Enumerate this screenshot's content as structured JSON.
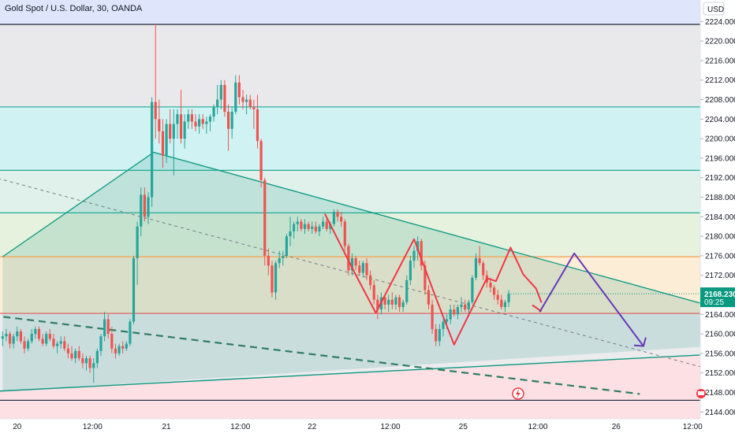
{
  "header": {
    "title": "Gold Spot / U.S. Dollar, 30, OANDA"
  },
  "axis": {
    "currency": "USD"
  },
  "badge": {
    "price": "2168.230",
    "countdown": "09:25"
  },
  "colors": {
    "up": "#26a69a",
    "down": "#ef5350",
    "bull_line": "#f23645",
    "projection": "#673ab7",
    "fib_lines": "#089981",
    "badge": "#089981"
  },
  "chart_data": {
    "type": "candlestick",
    "title": "Gold Spot / U.S. Dollar, 30, OANDA",
    "y_unit": "USD",
    "ylim": [
      2142.6,
      2228.4
    ],
    "y_ticks": [
      "2144.000",
      "2148.000",
      "2152.000",
      "2156.000",
      "2160.000",
      "2164.000",
      "2168.000",
      "2172.000",
      "2176.000",
      "2180.000",
      "2184.000",
      "2188.000",
      "2192.000",
      "2196.000",
      "2200.000",
      "2204.000",
      "2208.000",
      "2212.000",
      "2216.000",
      "2220.000",
      "2224.000"
    ],
    "x_ticks": [
      "20",
      "12:00",
      "21",
      "12:00",
      "22",
      "12:00",
      "25",
      "12:00",
      "26",
      "12:00"
    ],
    "last_price": 2168.23,
    "horizontal_levels": [
      {
        "price": 2223.4,
        "color": "#1e293b"
      },
      {
        "price": 2206.5,
        "color": "#22ab94"
      },
      {
        "price": 2193.5,
        "color": "#22ab94"
      },
      {
        "price": 2184.8,
        "color": "#22ab94"
      },
      {
        "price": 2175.8,
        "color": "#f6a04d"
      },
      {
        "price": 2164.2,
        "color": "#e05a5a"
      },
      {
        "price": 2146.4,
        "color": "#1e293b"
      }
    ],
    "zones": [
      {
        "from": 2223.4,
        "to": 2228.4,
        "color": "#dfe6fb"
      },
      {
        "from": 2206.5,
        "to": 2223.4,
        "color": "#e9e9ec"
      },
      {
        "from": 2193.5,
        "to": 2206.5,
        "color": "#d1f2f3"
      },
      {
        "from": 2184.8,
        "to": 2193.5,
        "color": "#dff1ea"
      },
      {
        "from": 2175.8,
        "to": 2184.8,
        "color": "#e6f1de"
      },
      {
        "from": 2164.2,
        "to": 2175.8,
        "color": "#fcedd6"
      },
      {
        "from": 2146.4,
        "to": 2164.2,
        "color": "#ececee"
      }
    ],
    "candles": [
      {
        "o": 2159.0,
        "h": 2160.5,
        "l": 2157.5,
        "c": 2159.5
      },
      {
        "o": 2159.5,
        "h": 2161.0,
        "l": 2158.5,
        "c": 2160.0
      },
      {
        "o": 2160.0,
        "h": 2160.5,
        "l": 2157.0,
        "c": 2158.0
      },
      {
        "o": 2158.0,
        "h": 2160.0,
        "l": 2157.0,
        "c": 2159.5
      },
      {
        "o": 2159.5,
        "h": 2161.5,
        "l": 2158.5,
        "c": 2160.5
      },
      {
        "o": 2160.5,
        "h": 2161.0,
        "l": 2158.0,
        "c": 2158.5
      },
      {
        "o": 2158.5,
        "h": 2159.5,
        "l": 2156.0,
        "c": 2157.0
      },
      {
        "o": 2157.0,
        "h": 2159.0,
        "l": 2156.5,
        "c": 2158.5
      },
      {
        "o": 2158.5,
        "h": 2161.0,
        "l": 2158.0,
        "c": 2160.0
      },
      {
        "o": 2160.0,
        "h": 2161.5,
        "l": 2159.0,
        "c": 2161.0
      },
      {
        "o": 2161.0,
        "h": 2161.5,
        "l": 2158.5,
        "c": 2159.0
      },
      {
        "o": 2159.0,
        "h": 2160.0,
        "l": 2157.5,
        "c": 2158.0
      },
      {
        "o": 2158.0,
        "h": 2160.5,
        "l": 2157.5,
        "c": 2160.0
      },
      {
        "o": 2160.0,
        "h": 2161.0,
        "l": 2158.5,
        "c": 2159.0
      },
      {
        "o": 2159.0,
        "h": 2160.0,
        "l": 2157.0,
        "c": 2157.5
      },
      {
        "o": 2157.5,
        "h": 2158.5,
        "l": 2156.0,
        "c": 2158.0
      },
      {
        "o": 2158.0,
        "h": 2159.5,
        "l": 2157.0,
        "c": 2158.5
      },
      {
        "o": 2158.5,
        "h": 2159.5,
        "l": 2156.5,
        "c": 2157.0
      },
      {
        "o": 2157.0,
        "h": 2158.0,
        "l": 2155.0,
        "c": 2156.0
      },
      {
        "o": 2156.0,
        "h": 2157.5,
        "l": 2154.5,
        "c": 2155.0
      },
      {
        "o": 2155.0,
        "h": 2157.0,
        "l": 2154.0,
        "c": 2156.5
      },
      {
        "o": 2156.5,
        "h": 2157.5,
        "l": 2154.5,
        "c": 2155.0
      },
      {
        "o": 2155.0,
        "h": 2156.0,
        "l": 2153.0,
        "c": 2154.0
      },
      {
        "o": 2154.0,
        "h": 2155.5,
        "l": 2152.5,
        "c": 2155.0
      },
      {
        "o": 2155.0,
        "h": 2155.5,
        "l": 2152.0,
        "c": 2153.0
      },
      {
        "o": 2153.0,
        "h": 2155.0,
        "l": 2150.0,
        "c": 2154.0
      },
      {
        "o": 2154.0,
        "h": 2157.0,
        "l": 2153.0,
        "c": 2156.5
      },
      {
        "o": 2156.5,
        "h": 2160.0,
        "l": 2155.5,
        "c": 2159.5
      },
      {
        "o": 2159.5,
        "h": 2164.5,
        "l": 2158.5,
        "c": 2163.0
      },
      {
        "o": 2163.0,
        "h": 2164.0,
        "l": 2159.0,
        "c": 2160.0
      },
      {
        "o": 2160.0,
        "h": 2161.5,
        "l": 2156.0,
        "c": 2157.0
      },
      {
        "o": 2157.0,
        "h": 2158.0,
        "l": 2155.0,
        "c": 2156.0
      },
      {
        "o": 2156.0,
        "h": 2158.0,
        "l": 2155.5,
        "c": 2157.5
      },
      {
        "o": 2157.5,
        "h": 2158.5,
        "l": 2156.0,
        "c": 2157.0
      },
      {
        "o": 2157.0,
        "h": 2158.5,
        "l": 2156.5,
        "c": 2158.0
      },
      {
        "o": 2158.0,
        "h": 2163.0,
        "l": 2157.5,
        "c": 2162.5
      },
      {
        "o": 2162.5,
        "h": 2176.0,
        "l": 2162.0,
        "c": 2175.5
      },
      {
        "o": 2175.5,
        "h": 2183.0,
        "l": 2170.0,
        "c": 2182.0
      },
      {
        "o": 2182.0,
        "h": 2190.0,
        "l": 2180.0,
        "c": 2188.5
      },
      {
        "o": 2188.5,
        "h": 2190.0,
        "l": 2183.0,
        "c": 2184.0
      },
      {
        "o": 2184.0,
        "h": 2189.0,
        "l": 2182.5,
        "c": 2188.0
      },
      {
        "o": 2188.0,
        "h": 2208.5,
        "l": 2186.0,
        "c": 2207.5
      },
      {
        "o": 2207.5,
        "h": 2223.4,
        "l": 2200.0,
        "c": 2204.0
      },
      {
        "o": 2204.0,
        "h": 2208.0,
        "l": 2199.0,
        "c": 2201.5
      },
      {
        "o": 2201.5,
        "h": 2204.0,
        "l": 2194.0,
        "c": 2196.5
      },
      {
        "o": 2196.5,
        "h": 2204.0,
        "l": 2195.0,
        "c": 2203.0
      },
      {
        "o": 2203.0,
        "h": 2206.0,
        "l": 2199.0,
        "c": 2200.0
      },
      {
        "o": 2200.0,
        "h": 2206.0,
        "l": 2192.5,
        "c": 2203.0
      },
      {
        "o": 2203.0,
        "h": 2206.0,
        "l": 2200.0,
        "c": 2205.0
      },
      {
        "o": 2205.0,
        "h": 2210.0,
        "l": 2199.0,
        "c": 2200.0
      },
      {
        "o": 2200.0,
        "h": 2205.0,
        "l": 2198.0,
        "c": 2203.5
      },
      {
        "o": 2203.5,
        "h": 2206.0,
        "l": 2202.0,
        "c": 2205.0
      },
      {
        "o": 2205.0,
        "h": 2206.0,
        "l": 2202.0,
        "c": 2203.5
      },
      {
        "o": 2203.5,
        "h": 2205.0,
        "l": 2201.5,
        "c": 2202.5
      },
      {
        "o": 2202.5,
        "h": 2205.0,
        "l": 2201.0,
        "c": 2204.0
      },
      {
        "o": 2204.0,
        "h": 2205.0,
        "l": 2202.0,
        "c": 2203.0
      },
      {
        "o": 2203.0,
        "h": 2204.5,
        "l": 2201.0,
        "c": 2203.5
      },
      {
        "o": 2203.5,
        "h": 2205.0,
        "l": 2201.5,
        "c": 2204.5
      },
      {
        "o": 2204.5,
        "h": 2207.0,
        "l": 2203.5,
        "c": 2206.5
      },
      {
        "o": 2206.5,
        "h": 2211.0,
        "l": 2205.0,
        "c": 2208.0
      },
      {
        "o": 2208.0,
        "h": 2212.0,
        "l": 2206.0,
        "c": 2211.0
      },
      {
        "o": 2211.0,
        "h": 2212.0,
        "l": 2204.5,
        "c": 2205.5
      },
      {
        "o": 2205.5,
        "h": 2207.0,
        "l": 2197.5,
        "c": 2202.0
      },
      {
        "o": 2202.0,
        "h": 2206.5,
        "l": 2200.0,
        "c": 2205.5
      },
      {
        "o": 2205.5,
        "h": 2213.0,
        "l": 2205.0,
        "c": 2211.5
      },
      {
        "o": 2211.5,
        "h": 2213.0,
        "l": 2207.0,
        "c": 2208.5
      },
      {
        "o": 2208.5,
        "h": 2210.0,
        "l": 2206.0,
        "c": 2207.5
      },
      {
        "o": 2207.5,
        "h": 2209.0,
        "l": 2205.0,
        "c": 2208.0
      },
      {
        "o": 2208.0,
        "h": 2209.0,
        "l": 2206.0,
        "c": 2206.5
      },
      {
        "o": 2206.5,
        "h": 2208.0,
        "l": 2202.0,
        "c": 2206.0
      },
      {
        "o": 2206.0,
        "h": 2209.0,
        "l": 2198.0,
        "c": 2199.5
      },
      {
        "o": 2199.5,
        "h": 2200.0,
        "l": 2190.0,
        "c": 2191.5
      },
      {
        "o": 2191.5,
        "h": 2192.0,
        "l": 2174.0,
        "c": 2176.0
      },
      {
        "o": 2176.0,
        "h": 2177.5,
        "l": 2172.0,
        "c": 2174.0
      },
      {
        "o": 2174.0,
        "h": 2175.0,
        "l": 2167.5,
        "c": 2168.5
      },
      {
        "o": 2168.5,
        "h": 2175.0,
        "l": 2167.0,
        "c": 2174.5
      },
      {
        "o": 2174.5,
        "h": 2177.0,
        "l": 2173.5,
        "c": 2175.5
      },
      {
        "o": 2175.5,
        "h": 2177.0,
        "l": 2174.0,
        "c": 2176.0
      },
      {
        "o": 2176.0,
        "h": 2180.5,
        "l": 2175.5,
        "c": 2180.0
      },
      {
        "o": 2180.0,
        "h": 2184.0,
        "l": 2178.0,
        "c": 2181.0
      },
      {
        "o": 2181.0,
        "h": 2183.0,
        "l": 2179.5,
        "c": 2182.5
      },
      {
        "o": 2182.5,
        "h": 2184.0,
        "l": 2181.0,
        "c": 2183.0
      },
      {
        "o": 2183.0,
        "h": 2183.5,
        "l": 2181.0,
        "c": 2181.5
      },
      {
        "o": 2181.5,
        "h": 2183.5,
        "l": 2180.5,
        "c": 2182.5
      },
      {
        "o": 2182.5,
        "h": 2183.0,
        "l": 2181.0,
        "c": 2181.5
      },
      {
        "o": 2181.5,
        "h": 2183.0,
        "l": 2180.5,
        "c": 2182.0
      },
      {
        "o": 2182.0,
        "h": 2183.0,
        "l": 2180.5,
        "c": 2181.0
      },
      {
        "o": 2181.0,
        "h": 2182.5,
        "l": 2180.0,
        "c": 2182.0
      },
      {
        "o": 2182.0,
        "h": 2184.0,
        "l": 2181.5,
        "c": 2183.0
      },
      {
        "o": 2183.0,
        "h": 2183.5,
        "l": 2181.0,
        "c": 2181.5
      },
      {
        "o": 2181.5,
        "h": 2183.0,
        "l": 2180.5,
        "c": 2182.5
      },
      {
        "o": 2182.5,
        "h": 2185.5,
        "l": 2182.0,
        "c": 2185.0
      },
      {
        "o": 2185.0,
        "h": 2185.5,
        "l": 2183.0,
        "c": 2184.0
      },
      {
        "o": 2184.0,
        "h": 2185.0,
        "l": 2182.0,
        "c": 2183.0
      },
      {
        "o": 2183.0,
        "h": 2183.5,
        "l": 2177.0,
        "c": 2178.0
      },
      {
        "o": 2178.0,
        "h": 2178.5,
        "l": 2172.0,
        "c": 2173.0
      },
      {
        "o": 2173.0,
        "h": 2176.5,
        "l": 2172.0,
        "c": 2175.5
      },
      {
        "o": 2175.5,
        "h": 2176.0,
        "l": 2173.0,
        "c": 2174.0
      },
      {
        "o": 2174.0,
        "h": 2175.0,
        "l": 2172.0,
        "c": 2172.5
      },
      {
        "o": 2172.5,
        "h": 2175.0,
        "l": 2171.5,
        "c": 2174.5
      },
      {
        "o": 2174.5,
        "h": 2175.5,
        "l": 2171.0,
        "c": 2172.0
      },
      {
        "o": 2172.0,
        "h": 2173.0,
        "l": 2169.0,
        "c": 2170.0
      },
      {
        "o": 2170.0,
        "h": 2171.0,
        "l": 2166.0,
        "c": 2167.0
      },
      {
        "o": 2167.0,
        "h": 2168.0,
        "l": 2163.0,
        "c": 2165.0
      },
      {
        "o": 2165.0,
        "h": 2168.5,
        "l": 2164.0,
        "c": 2167.5
      },
      {
        "o": 2167.5,
        "h": 2168.0,
        "l": 2165.0,
        "c": 2166.0
      },
      {
        "o": 2166.0,
        "h": 2168.0,
        "l": 2164.5,
        "c": 2167.0
      },
      {
        "o": 2167.0,
        "h": 2168.5,
        "l": 2165.0,
        "c": 2166.0
      },
      {
        "o": 2166.0,
        "h": 2168.0,
        "l": 2165.0,
        "c": 2167.5
      },
      {
        "o": 2167.5,
        "h": 2168.0,
        "l": 2164.5,
        "c": 2165.5
      },
      {
        "o": 2165.5,
        "h": 2167.0,
        "l": 2164.5,
        "c": 2166.5
      },
      {
        "o": 2166.5,
        "h": 2172.0,
        "l": 2166.0,
        "c": 2171.0
      },
      {
        "o": 2171.0,
        "h": 2176.0,
        "l": 2170.0,
        "c": 2175.0
      },
      {
        "o": 2175.0,
        "h": 2178.0,
        "l": 2173.5,
        "c": 2177.0
      },
      {
        "o": 2177.0,
        "h": 2180.0,
        "l": 2175.0,
        "c": 2179.0
      },
      {
        "o": 2179.0,
        "h": 2179.5,
        "l": 2173.0,
        "c": 2174.0
      },
      {
        "o": 2174.0,
        "h": 2175.0,
        "l": 2168.0,
        "c": 2169.0
      },
      {
        "o": 2169.0,
        "h": 2170.0,
        "l": 2165.0,
        "c": 2166.0
      },
      {
        "o": 2166.0,
        "h": 2167.0,
        "l": 2160.0,
        "c": 2161.0
      },
      {
        "o": 2161.0,
        "h": 2162.0,
        "l": 2157.5,
        "c": 2158.5
      },
      {
        "o": 2158.5,
        "h": 2162.0,
        "l": 2157.5,
        "c": 2161.0
      },
      {
        "o": 2161.0,
        "h": 2163.0,
        "l": 2159.5,
        "c": 2162.5
      },
      {
        "o": 2162.5,
        "h": 2164.0,
        "l": 2161.0,
        "c": 2163.0
      },
      {
        "o": 2163.0,
        "h": 2166.0,
        "l": 2162.0,
        "c": 2165.0
      },
      {
        "o": 2165.0,
        "h": 2166.0,
        "l": 2163.5,
        "c": 2164.0
      },
      {
        "o": 2164.0,
        "h": 2166.0,
        "l": 2163.0,
        "c": 2165.5
      },
      {
        "o": 2165.5,
        "h": 2167.5,
        "l": 2164.5,
        "c": 2166.0
      },
      {
        "o": 2166.0,
        "h": 2167.0,
        "l": 2164.5,
        "c": 2165.0
      },
      {
        "o": 2165.0,
        "h": 2167.0,
        "l": 2163.5,
        "c": 2166.5
      },
      {
        "o": 2166.5,
        "h": 2172.0,
        "l": 2166.0,
        "c": 2171.5
      },
      {
        "o": 2171.5,
        "h": 2176.5,
        "l": 2171.0,
        "c": 2175.5
      },
      {
        "o": 2175.5,
        "h": 2178.0,
        "l": 2174.0,
        "c": 2174.5
      },
      {
        "o": 2174.5,
        "h": 2175.0,
        "l": 2171.0,
        "c": 2172.0
      },
      {
        "o": 2172.0,
        "h": 2173.0,
        "l": 2169.5,
        "c": 2170.5
      },
      {
        "o": 2170.5,
        "h": 2171.5,
        "l": 2168.5,
        "c": 2169.5
      },
      {
        "o": 2169.5,
        "h": 2170.0,
        "l": 2167.0,
        "c": 2168.0
      },
      {
        "o": 2168.0,
        "h": 2169.0,
        "l": 2166.0,
        "c": 2167.0
      },
      {
        "o": 2167.0,
        "h": 2168.0,
        "l": 2165.0,
        "c": 2165.5
      },
      {
        "o": 2165.5,
        "h": 2167.0,
        "l": 2164.5,
        "c": 2166.5
      },
      {
        "o": 2166.5,
        "h": 2169.0,
        "l": 2165.5,
        "c": 2168.2
      }
    ],
    "annotations": {
      "triangle": [
        [
          0,
          2175.8
        ],
        [
          41.5,
          2197.2
        ],
        [
          197,
          2165.2
        ],
        [
          197,
          2157.6
        ],
        [
          0,
          2148.2
        ]
      ],
      "dashed_trend": [
        [
          -3,
          2192.2
        ],
        [
          205,
          2150.6
        ]
      ],
      "support_dashed": [
        [
          -3,
          2163.8
        ],
        [
          175,
          2147.7
        ]
      ],
      "support_line": [
        [
          -3,
          2148.2
        ],
        [
          205,
          2156.2
        ]
      ],
      "red_pattern": [
        [
          88.5,
          2184.6
        ],
        [
          96.5,
          2172.8
        ],
        [
          102.5,
          2164.3
        ],
        [
          113,
          2179.4
        ],
        [
          119,
          2167.4
        ],
        [
          124,
          2157.8
        ],
        [
          133,
          2171.4
        ],
        [
          135.5,
          2170.8
        ],
        [
          139.5,
          2177.7
        ],
        [
          143,
          2172.2
        ],
        [
          146.5,
          2169.3
        ],
        [
          148,
          2166.4
        ]
      ],
      "red_arrow": [
        [
          145.5,
          2165.9
        ],
        [
          148,
          2164.6
        ]
      ],
      "projection": [
        [
          147.5,
          2164.5
        ],
        [
          157,
          2176.5
        ],
        [
          176,
          2157.5
        ]
      ]
    }
  }
}
